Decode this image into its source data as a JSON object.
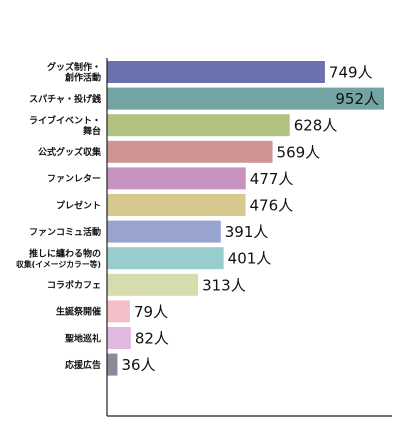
{
  "chart_data": {
    "type": "bar",
    "orientation": "horizontal",
    "categories": [
      [
        "グッズ制作・",
        "創作活動"
      ],
      [
        "スパチャ・投げ銭"
      ],
      [
        "ライブイベント・",
        "舞台"
      ],
      [
        "公式グッズ収集"
      ],
      [
        "ファンレター"
      ],
      [
        "プレゼント"
      ],
      [
        "ファンコミュ活動"
      ],
      [
        "推しに纏わる物の",
        "収集(イメージカラー等)"
      ],
      [
        "コラボカフェ"
      ],
      [
        "生誕祭開催"
      ],
      [
        "聖地巡礼"
      ],
      [
        "応援広告"
      ]
    ],
    "values": [
      749,
      952,
      628,
      569,
      477,
      476,
      391,
      401,
      313,
      79,
      82,
      36
    ],
    "value_labels": [
      "749人",
      "952人",
      "628人",
      "569人",
      "477人",
      "476人",
      "391人",
      "401人",
      "313人",
      "79人",
      "82人",
      "36人"
    ],
    "colors": [
      "#6b72ad",
      "#74a3a4",
      "#b2c282",
      "#cf9593",
      "#c993c1",
      "#d5c98e",
      "#99a3cf",
      "#98cecd",
      "#d6dcae",
      "#f2c0c6",
      "#e2b7e0",
      "#8a8a98"
    ],
    "inside_label_color": "#ffffff",
    "xlim": [
      0,
      952
    ]
  }
}
